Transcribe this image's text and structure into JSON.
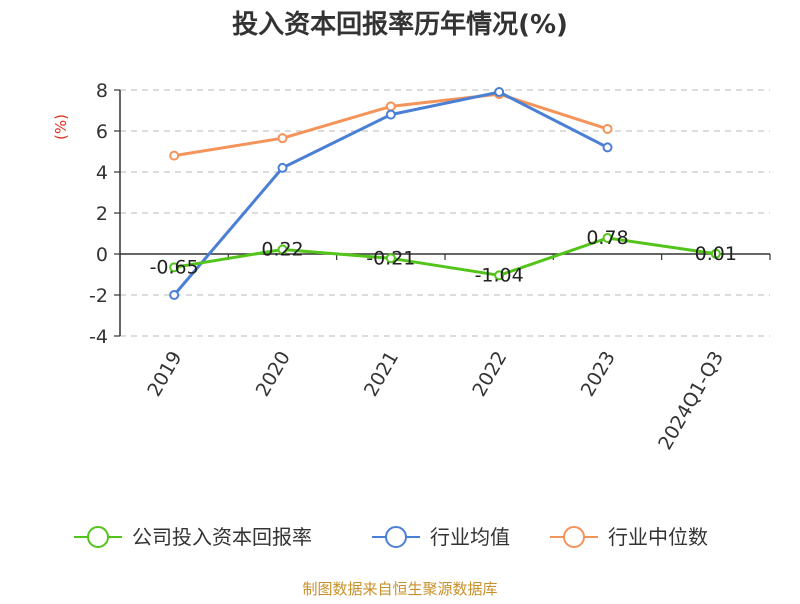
{
  "chart_data": {
    "type": "line",
    "title": "投入资本回报率历年情况(%)",
    "ylabel": "(%)",
    "xlabel": "",
    "categories": [
      "2019",
      "2020",
      "2021",
      "2022",
      "2023",
      "2024Q1-Q3"
    ],
    "ylim": [
      -4,
      8
    ],
    "yticks": [
      -4,
      -2,
      0,
      2,
      4,
      6,
      8
    ],
    "grid": true,
    "legend_position": "bottom",
    "series": [
      {
        "name": "公司投入资本回报率",
        "color": "#52c41a",
        "values": [
          -0.65,
          0.22,
          -0.21,
          -1.04,
          0.78,
          0.01
        ],
        "labels": [
          "-0.65",
          "0.22",
          "-0.21",
          "-1.04",
          "0.78",
          "0.01"
        ]
      },
      {
        "name": "行业均值",
        "color": "#4a7fd6",
        "values": [
          -2.0,
          4.2,
          6.8,
          7.9,
          5.2,
          null
        ]
      },
      {
        "name": "行业中位数",
        "color": "#f4935a",
        "values": [
          4.8,
          5.65,
          7.2,
          7.8,
          6.1,
          null
        ]
      }
    ]
  },
  "source": "制图数据来自恒生聚源数据库"
}
